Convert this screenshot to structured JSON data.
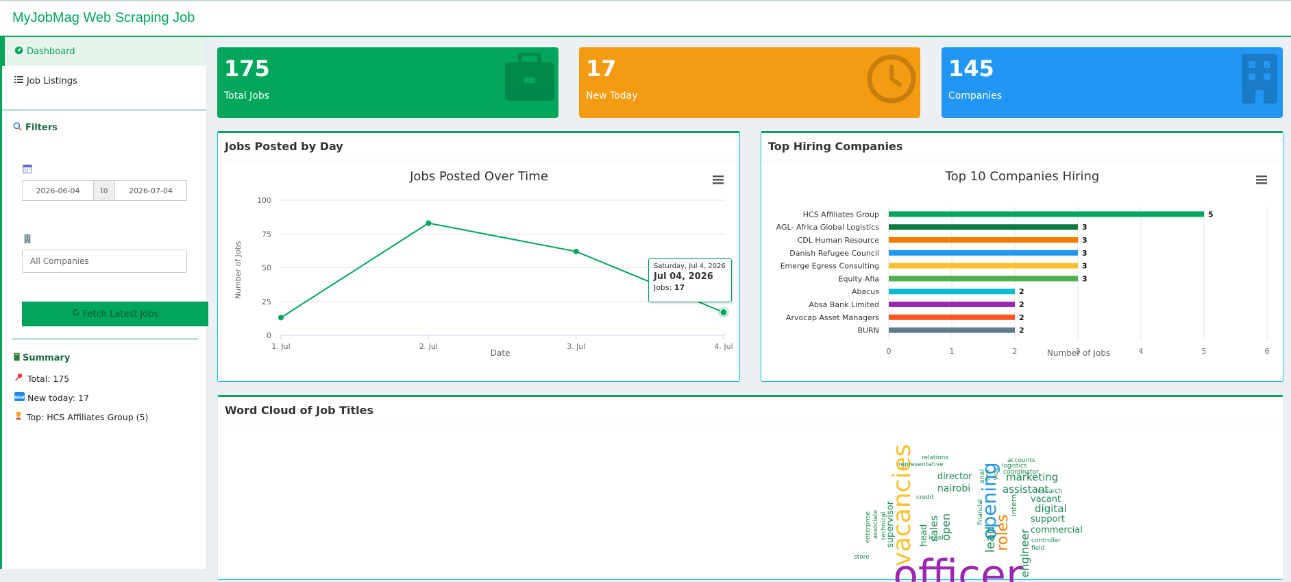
{
  "app": {
    "title": "MyJobMag Web Scraping Job"
  },
  "sidebar": {
    "menu": [
      {
        "label": "Dashboard",
        "icon": "tachometer-icon",
        "active": true
      },
      {
        "label": "Job Listings",
        "icon": "list-icon",
        "active": false
      }
    ],
    "filters_title": "Filters",
    "date_from": "2026-06-04",
    "date_sep": "to",
    "date_to": "2026-07-04",
    "company_placeholder": "All Companies",
    "fetch_label": "Fetch Latest Jobs",
    "summary_title": "Summary",
    "summary": {
      "total": "Total: 175",
      "new_today": "New today: 17",
      "top": "Top: HCS Affiliates Group (5)"
    }
  },
  "value_boxes": [
    {
      "value": "175",
      "label": "Total Jobs",
      "color": "#00a65a",
      "icon": "briefcase-icon"
    },
    {
      "value": "17",
      "label": "New Today",
      "color": "#f39c12",
      "icon": "clock-icon"
    },
    {
      "value": "145",
      "label": "Companies",
      "color": "#2196f3",
      "icon": "building-icon"
    }
  ],
  "panels": {
    "jobs_by_day": "Jobs Posted by Day",
    "top_companies": "Top Hiring Companies",
    "word_cloud": "Word Cloud of Job Titles"
  },
  "tooltip": {
    "line1": "Saturday, Jul 4, 2026",
    "line2": "Jul 04, 2026",
    "label": "Jobs:",
    "value": "17"
  },
  "chart_data": [
    {
      "type": "line",
      "title": "Jobs Posted Over Time",
      "xlabel": "Date",
      "ylabel": "Number of Jobs",
      "categories": [
        "1. Jul",
        "2. Jul",
        "3. Jul",
        "4. Jul"
      ],
      "values": [
        13,
        83,
        62,
        17
      ],
      "ylim": [
        0,
        100
      ],
      "yticks": [
        0,
        25,
        50,
        75,
        100
      ],
      "color": "#00a65a",
      "grid": true
    },
    {
      "type": "bar",
      "orientation": "horizontal",
      "title": "Top 10 Companies Hiring",
      "xlabel": "Number of Jobs",
      "categories": [
        "HCS Affiliates Group",
        "AGL- Africa Global Logistics",
        "CDL Human Resource",
        "Danish Refugee Council",
        "Emerge Egress Consulting",
        "Equity Afia",
        "Abacus",
        "Absa Bank Limited",
        "Arvocap Asset Managers",
        "BURN"
      ],
      "values": [
        5,
        3,
        3,
        3,
        3,
        3,
        2,
        2,
        2,
        2
      ],
      "colors": [
        "#00a65a",
        "#0e7a3f",
        "#f57c00",
        "#2196f3",
        "#fbc02d",
        "#4caf50",
        "#00bcd4",
        "#9c27b0",
        "#ff5722",
        "#607d8b"
      ],
      "xlim": [
        0,
        6
      ],
      "xticks": [
        0,
        1,
        2,
        3,
        4,
        5,
        6
      ],
      "grid": true
    }
  ],
  "word_cloud": [
    {
      "text": "opening",
      "color": "#2196f3"
    },
    {
      "text": "vacancies",
      "color": "#fbc02d"
    },
    {
      "text": "officer",
      "color": "#9c27b0"
    },
    {
      "text": "roles",
      "color": "#f57c00"
    },
    {
      "text": "marketing",
      "color": "#1a8a50"
    },
    {
      "text": "assistant",
      "color": "#1a8a50"
    },
    {
      "text": "director",
      "color": "#1a8a50"
    },
    {
      "text": "nairobi",
      "color": "#1a8a50"
    },
    {
      "text": "sales",
      "color": "#1a8a50"
    },
    {
      "text": "open",
      "color": "#1a8a50"
    },
    {
      "text": "head",
      "color": "#1a8a50"
    },
    {
      "text": "lead",
      "color": "#1a8a50"
    },
    {
      "text": "supervisor",
      "color": "#1a8a50"
    },
    {
      "text": "digital",
      "color": "#1a8a50"
    },
    {
      "text": "vacant",
      "color": "#1a8a50"
    },
    {
      "text": "support",
      "color": "#1a8a50"
    },
    {
      "text": "commercial",
      "color": "#1a8a50"
    },
    {
      "text": "engineer",
      "color": "#1a8a50"
    },
    {
      "text": "representative",
      "color": "#1a8a50"
    },
    {
      "text": "relations",
      "color": "#1a8a50"
    },
    {
      "text": "accounts",
      "color": "#1a8a50"
    },
    {
      "text": "logistics",
      "color": "#1a8a50"
    },
    {
      "text": "coordinator",
      "color": "#1a8a50"
    },
    {
      "text": "research",
      "color": "#1a8a50"
    },
    {
      "text": "credit",
      "color": "#1a8a50"
    },
    {
      "text": "intern",
      "color": "#1a8a50"
    },
    {
      "text": "financial",
      "color": "#1a8a50"
    },
    {
      "text": "technical",
      "color": "#1a8a50"
    },
    {
      "text": "associate",
      "color": "#1a8a50"
    },
    {
      "text": "enterprise",
      "color": "#1a8a50"
    },
    {
      "text": "legal",
      "color": "#1a8a50"
    },
    {
      "text": "controller",
      "color": "#1a8a50"
    },
    {
      "text": "field",
      "color": "#1a8a50"
    },
    {
      "text": "anal",
      "color": "#1a8a50"
    },
    {
      "text": "vide",
      "color": "#1a8a50"
    },
    {
      "text": "cen",
      "color": "#1a8a50"
    },
    {
      "text": "store",
      "color": "#1a8a50"
    }
  ]
}
